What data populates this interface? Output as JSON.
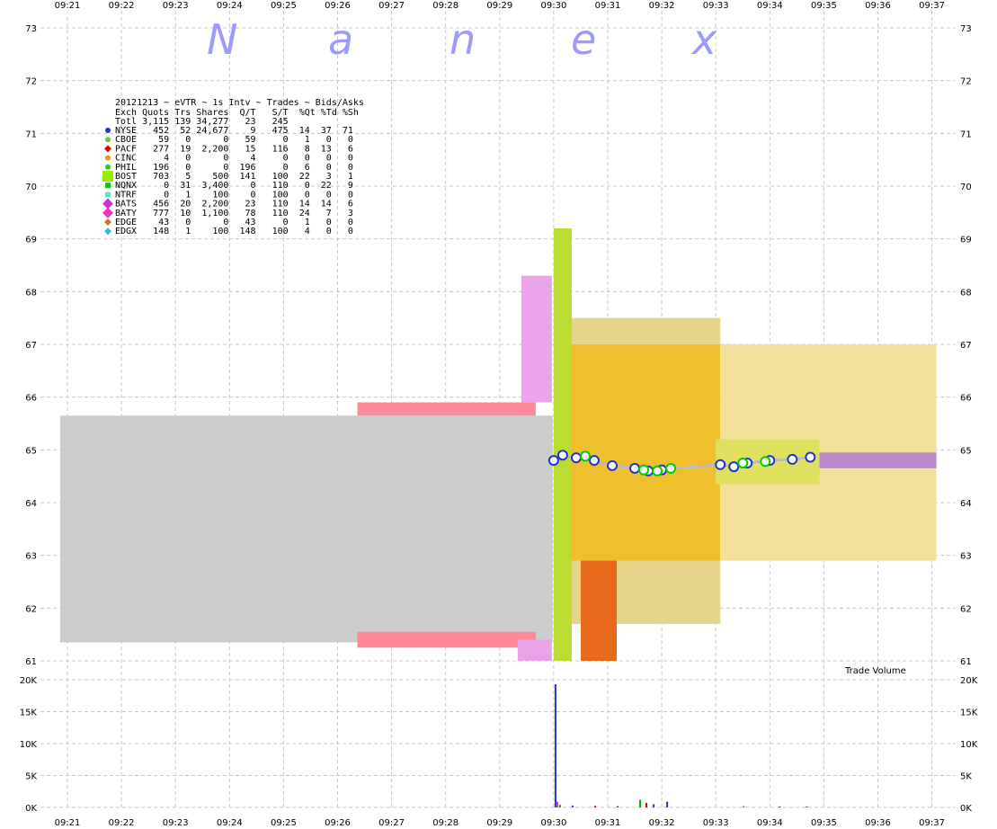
{
  "chart_data": [
    {
      "type": "area",
      "title": "20121213 ~ eVTR ~ 1s Intv ~ Trades ~ Bids/Asks",
      "watermark": [
        "N",
        "a",
        "n",
        "e",
        "x"
      ],
      "x_ticks": [
        "09:21",
        "09:22",
        "09:23",
        "09:24",
        "09:25",
        "09:26",
        "09:27",
        "09:28",
        "09:29",
        "09:30",
        "09:31",
        "09:32",
        "09:33",
        "09:34",
        "09:35",
        "09:36",
        "09:37"
      ],
      "y_ticks": [
        "73",
        "72",
        "71",
        "70",
        "69",
        "68",
        "67",
        "66",
        "65",
        "64",
        "63",
        "62",
        "61"
      ],
      "ylim": [
        61,
        73
      ],
      "grid": true,
      "legend": {
        "header1": "Exch Quots Trs Shares  Q/T   S/T  %Qt %Td %Sh",
        "header2": "Totl 3,115 139 34,277   23   245",
        "rows": [
          {
            "marker": "circle",
            "color": "#2233cc",
            "text": "NYSE   452  52 24,677    9   475  14  37  71"
          },
          {
            "marker": "circle",
            "color": "#66cc33",
            "text": "CBOE    59   0      0   59     0   1   0   0"
          },
          {
            "marker": "diamond",
            "color": "#dd0000",
            "text": "PACF   277  19  2,200   15   116   8  13   6"
          },
          {
            "marker": "circle",
            "color": "#ee9900",
            "text": "CINC     4   0      0    4     0   0   0   0"
          },
          {
            "marker": "circle",
            "color": "#22cc22",
            "text": "PHIL   196   0      0  196     0   6   0   0"
          },
          {
            "marker": "bigsquare",
            "color": "#99ee00",
            "text": "BOST   703   5    500  141   100  22   3   1"
          },
          {
            "marker": "square",
            "color": "#00cc00",
            "text": "NQNX     0  31  3,400    0   110   0  22   9"
          },
          {
            "marker": "square",
            "color": "#66ddbb",
            "text": "NTRF     0   1    100    0   100   0   0   0"
          },
          {
            "marker": "bigdiamond",
            "color": "#cc33cc",
            "text": "BATS   456  20  2,200   23   110  14  14   6"
          },
          {
            "marker": "bigdiamond",
            "color": "#ee33bb",
            "text": "BATY   777  10  1,100   78   110  24   7   3"
          },
          {
            "marker": "diamond",
            "color": "#cc7722",
            "text": "EDGE    43   0      0   43     0   1   0   0"
          },
          {
            "marker": "diamond",
            "color": "#33bbdd",
            "text": "EDGX   148   1    100  148   100   4   0   0"
          }
        ]
      },
      "series": [
        {
          "kind": "band",
          "color": "#cccccc",
          "from": "09:20:52",
          "to": "09:29:59",
          "low": 61.35,
          "high": 65.65
        },
        {
          "kind": "band",
          "color": "#ff8899",
          "from": "09:26:22",
          "to": "09:29:40",
          "low": 61.25,
          "high": 61.55
        },
        {
          "kind": "band",
          "color": "#ff8899",
          "from": "09:26:22",
          "to": "09:29:40",
          "low": 65.65,
          "high": 65.9
        },
        {
          "kind": "band",
          "color": "#e9a3e9",
          "from": "09:29:20",
          "to": "09:29:58",
          "low": 61.0,
          "high": 61.4
        },
        {
          "kind": "band",
          "color": "#e9a3e9",
          "from": "09:29:24",
          "to": "09:29:58",
          "low": 65.9,
          "high": 68.3
        },
        {
          "kind": "band",
          "color": "#e5d58a",
          "from": "09:30:10",
          "to": "09:33:05",
          "low": 61.7,
          "high": 62.9
        },
        {
          "kind": "band",
          "color": "#e5d58a",
          "from": "09:30:10",
          "to": "09:33:05",
          "low": 67.0,
          "high": 67.5
        },
        {
          "kind": "band",
          "color": "#f0bf2e",
          "from": "09:30:10",
          "to": "09:33:05",
          "low": 62.9,
          "high": 67.0
        },
        {
          "kind": "band",
          "color": "#f2e19a",
          "from": "09:33:05",
          "to": "09:37:05",
          "low": 62.9,
          "high": 67.0
        },
        {
          "kind": "band",
          "color": "#e76a1a",
          "from": "09:30:30",
          "to": "09:31:10",
          "low": 61.0,
          "high": 62.9
        },
        {
          "kind": "band",
          "color": "#bbdd33",
          "from": "09:30:00",
          "to": "09:30:20",
          "low": 61.0,
          "high": 69.2
        },
        {
          "kind": "band",
          "color": "#bb88cc",
          "from": "09:34:55",
          "to": "09:37:05",
          "low": 64.65,
          "high": 64.95
        },
        {
          "kind": "band",
          "color": "#e0e060",
          "from": "09:33:00",
          "to": "09:34:55",
          "low": 64.35,
          "high": 65.2
        },
        {
          "kind": "trades",
          "color": "#2233cc",
          "points": [
            [
              "09:30:00",
              64.8
            ],
            [
              "09:30:10",
              64.9
            ],
            [
              "09:30:25",
              64.85
            ],
            [
              "09:30:45",
              64.8
            ],
            [
              "09:31:05",
              64.7
            ],
            [
              "09:31:30",
              64.65
            ],
            [
              "09:31:45",
              64.6
            ],
            [
              "09:32:00",
              64.62
            ],
            [
              "09:33:05",
              64.72
            ],
            [
              "09:33:20",
              64.68
            ],
            [
              "09:33:35",
              64.75
            ],
            [
              "09:34:00",
              64.8
            ],
            [
              "09:34:25",
              64.82
            ],
            [
              "09:34:45",
              64.86
            ]
          ]
        },
        {
          "kind": "trades",
          "color": "#00cc00",
          "points": [
            [
              "09:30:35",
              64.88
            ],
            [
              "09:31:40",
              64.62
            ],
            [
              "09:31:55",
              64.6
            ],
            [
              "09:32:10",
              64.65
            ],
            [
              "09:33:30",
              64.75
            ],
            [
              "09:33:55",
              64.78
            ]
          ]
        }
      ]
    },
    {
      "type": "bar",
      "title": "Trade Volume",
      "x_ticks": [
        "09:21",
        "09:22",
        "09:23",
        "09:24",
        "09:25",
        "09:26",
        "09:27",
        "09:28",
        "09:29",
        "09:30",
        "09:31",
        "09:32",
        "09:33",
        "09:34",
        "09:35",
        "09:36",
        "09:37"
      ],
      "y_ticks": [
        "20K",
        "15K",
        "10K",
        "5K",
        "0K"
      ],
      "ylim": [
        0,
        20000
      ],
      "grid": true,
      "bars": [
        {
          "t": "09:30:01",
          "v": 19300,
          "color": "#2233cc"
        },
        {
          "t": "09:30:03",
          "v": 900,
          "color": "#cc33cc"
        },
        {
          "t": "09:30:06",
          "v": 400,
          "color": "#00aa00"
        },
        {
          "t": "09:30:20",
          "v": 300,
          "color": "#2233cc"
        },
        {
          "t": "09:30:45",
          "v": 250,
          "color": "#dd0000"
        },
        {
          "t": "09:31:10",
          "v": 200,
          "color": "#2233cc"
        },
        {
          "t": "09:31:35",
          "v": 1200,
          "color": "#00aa00"
        },
        {
          "t": "09:31:42",
          "v": 700,
          "color": "#dd0000"
        },
        {
          "t": "09:31:50",
          "v": 500,
          "color": "#2233cc"
        },
        {
          "t": "09:32:05",
          "v": 900,
          "color": "#2233cc"
        },
        {
          "t": "09:33:30",
          "v": 200,
          "color": "#00aa00"
        },
        {
          "t": "09:34:10",
          "v": 150,
          "color": "#2233cc"
        },
        {
          "t": "09:34:40",
          "v": 150,
          "color": "#2233cc"
        }
      ]
    }
  ]
}
